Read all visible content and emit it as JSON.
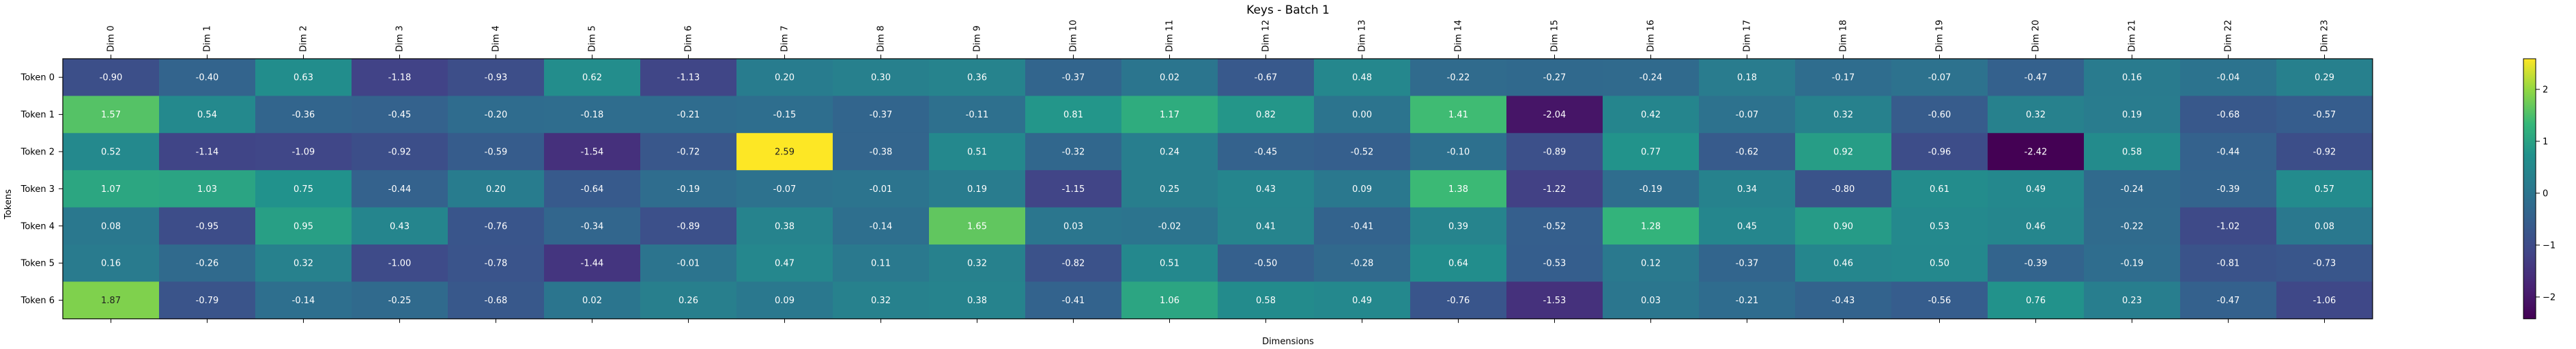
{
  "chart_data": {
    "type": "heatmap",
    "title": "Keys - Batch 1",
    "xlabel": "Dimensions",
    "ylabel": "Tokens",
    "x_labels": [
      "Dim 0",
      "Dim 1",
      "Dim 2",
      "Dim 3",
      "Dim 4",
      "Dim 5",
      "Dim 6",
      "Dim 7",
      "Dim 8",
      "Dim 9",
      "Dim 10",
      "Dim 11",
      "Dim 12",
      "Dim 13",
      "Dim 14",
      "Dim 15",
      "Dim 16",
      "Dim 17",
      "Dim 18",
      "Dim 19",
      "Dim 20",
      "Dim 21",
      "Dim 22",
      "Dim 23"
    ],
    "y_labels": [
      "Token 0",
      "Token 1",
      "Token 2",
      "Token 3",
      "Token 4",
      "Token 5",
      "Token 6"
    ],
    "values": [
      [
        -0.9,
        -0.4,
        0.63,
        -1.18,
        -0.93,
        0.62,
        -1.13,
        0.2,
        0.3,
        0.36,
        -0.37,
        0.02,
        -0.67,
        0.48,
        -0.22,
        -0.27,
        -0.24,
        0.18,
        -0.17,
        -0.07,
        -0.47,
        0.16,
        -0.04,
        0.29
      ],
      [
        1.57,
        0.54,
        -0.36,
        -0.45,
        -0.2,
        -0.18,
        -0.21,
        -0.15,
        -0.37,
        -0.11,
        0.81,
        1.17,
        0.82,
        0.0,
        1.41,
        -2.04,
        0.42,
        -0.07,
        0.32,
        -0.6,
        0.32,
        0.19,
        -0.68,
        -0.57
      ],
      [
        0.52,
        -1.14,
        -1.09,
        -0.92,
        -0.59,
        -1.54,
        -0.72,
        2.59,
        -0.38,
        0.51,
        -0.32,
        0.24,
        -0.45,
        -0.52,
        -0.1,
        -0.89,
        0.77,
        -0.62,
        0.92,
        -0.96,
        -2.42,
        0.58,
        -0.44,
        -0.92
      ],
      [
        1.07,
        1.03,
        0.75,
        -0.44,
        0.2,
        -0.64,
        -0.19,
        -0.07,
        -0.01,
        0.19,
        -1.15,
        0.25,
        0.43,
        0.09,
        1.38,
        -1.22,
        -0.19,
        0.34,
        -0.8,
        0.61,
        0.49,
        -0.24,
        -0.39,
        0.57
      ],
      [
        0.08,
        -0.95,
        0.95,
        0.43,
        -0.76,
        -0.34,
        -0.89,
        0.38,
        -0.14,
        1.65,
        0.03,
        -0.02,
        0.41,
        -0.41,
        0.39,
        -0.52,
        1.28,
        0.45,
        0.9,
        0.53,
        0.46,
        -0.22,
        -1.02,
        0.08
      ],
      [
        0.16,
        -0.26,
        0.32,
        -1.0,
        -0.78,
        -1.44,
        -0.01,
        0.47,
        0.11,
        0.32,
        -0.82,
        0.51,
        -0.5,
        -0.28,
        0.64,
        -0.53,
        0.12,
        -0.37,
        0.46,
        0.5,
        -0.39,
        -0.19,
        -0.81,
        -0.73
      ],
      [
        1.87,
        -0.79,
        -0.14,
        -0.25,
        -0.68,
        0.02,
        0.26,
        0.09,
        0.32,
        0.38,
        -0.41,
        1.06,
        0.58,
        0.49,
        -0.76,
        -1.53,
        0.03,
        -0.21,
        -0.43,
        -0.56,
        0.76,
        0.23,
        -0.47,
        -1.06
      ]
    ],
    "value_format": "0.00",
    "colormap": "viridis",
    "color_range": [
      -2.42,
      2.59
    ],
    "colorbar_ticks": [
      2,
      1,
      0,
      -1,
      -2
    ],
    "grid": false,
    "legend": "colorbar-right"
  }
}
